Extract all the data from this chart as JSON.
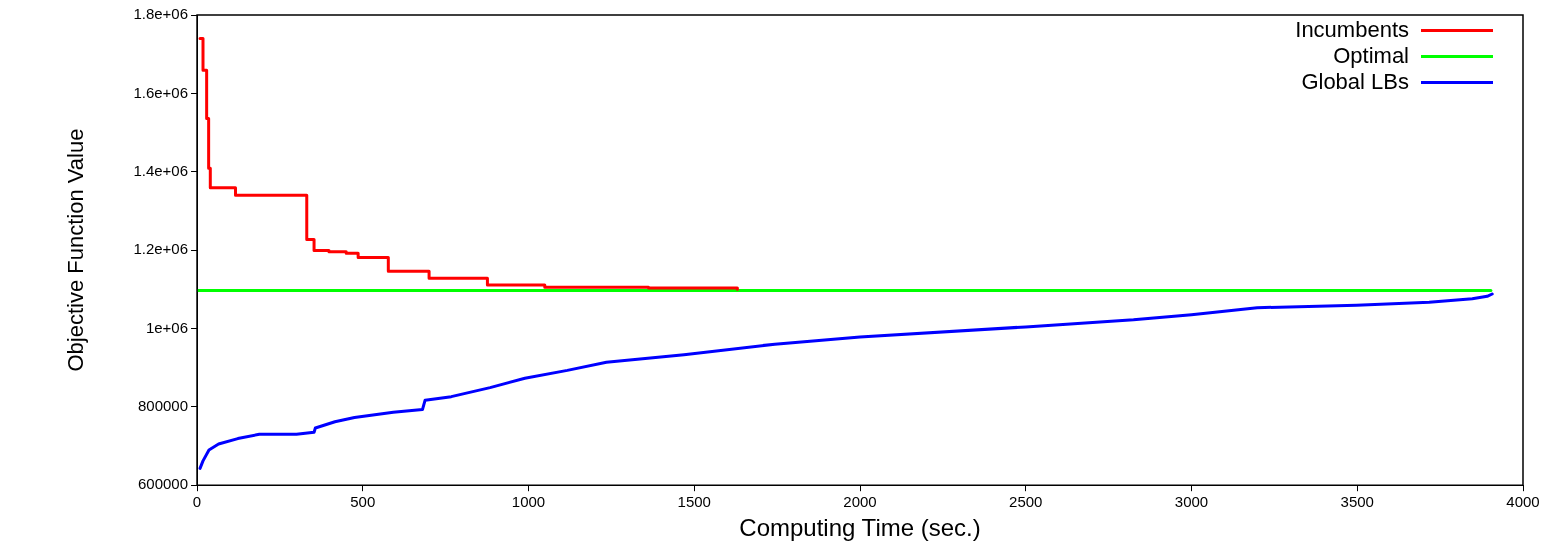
{
  "chart_data": {
    "type": "line",
    "xlabel": "Computing Time (sec.)",
    "ylabel": "Objective Function Value",
    "xlim": [
      0,
      4000
    ],
    "xticks": [
      0,
      500,
      1000,
      1500,
      2000,
      2500,
      3000,
      3500,
      4000
    ],
    "ylim": [
      600000,
      1800000
    ],
    "yticks": [
      600000,
      800000,
      {
        "value": 1000000,
        "label": "1e+06"
      },
      {
        "value": 1200000,
        "label": "1.2e+06"
      },
      {
        "value": 1400000,
        "label": "1.4e+06"
      },
      {
        "value": 1600000,
        "label": "1.6e+06"
      },
      {
        "value": 1800000,
        "label": "1.8e+06"
      }
    ],
    "grid": false,
    "legend": "top right",
    "marker": "none",
    "line_style": "solid",
    "series": [
      {
        "name": "Incumbents",
        "type": "step",
        "color": "#ff0000",
        "x": [
          9,
          18,
          29,
          35,
          40,
          116,
          331,
          353,
          398,
          450,
          486,
          577,
          700,
          876,
          1049,
          1362,
          1630
        ],
        "values": [
          1740000,
          1659000,
          1536000,
          1409000,
          1359000,
          1340000,
          1227000,
          1199000,
          1196000,
          1192000,
          1181000,
          1146000,
          1128000,
          1111000,
          1105000,
          1103000,
          1100000
        ]
      },
      {
        "name": "Optimal",
        "color": "#00ff00",
        "x": [
          0,
          3903
        ],
        "values": [
          1097000,
          1097000
        ]
      },
      {
        "name": "Global LBs",
        "color": "#0000ff",
        "x": [
          9,
          18,
          36,
          65,
          123,
          188,
          300,
          353,
          357,
          416,
          475,
          592,
          680,
          688,
          767,
          884,
          989,
          1117,
          1235,
          1469,
          1743,
          2000,
          2500,
          2825,
          3000,
          3198,
          3498,
          3717,
          3847,
          3892,
          3907
        ],
        "values": [
          643000,
          662000,
          690000,
          705000,
          719000,
          730000,
          730000,
          735000,
          746000,
          762000,
          773000,
          786000,
          793000,
          817000,
          826000,
          849000,
          873000,
          893000,
          914000,
          933000,
          960000,
          978000,
          1004000,
          1022000,
          1035000,
          1053000,
          1059000,
          1067000,
          1076000,
          1082000,
          1088000
        ]
      }
    ]
  }
}
